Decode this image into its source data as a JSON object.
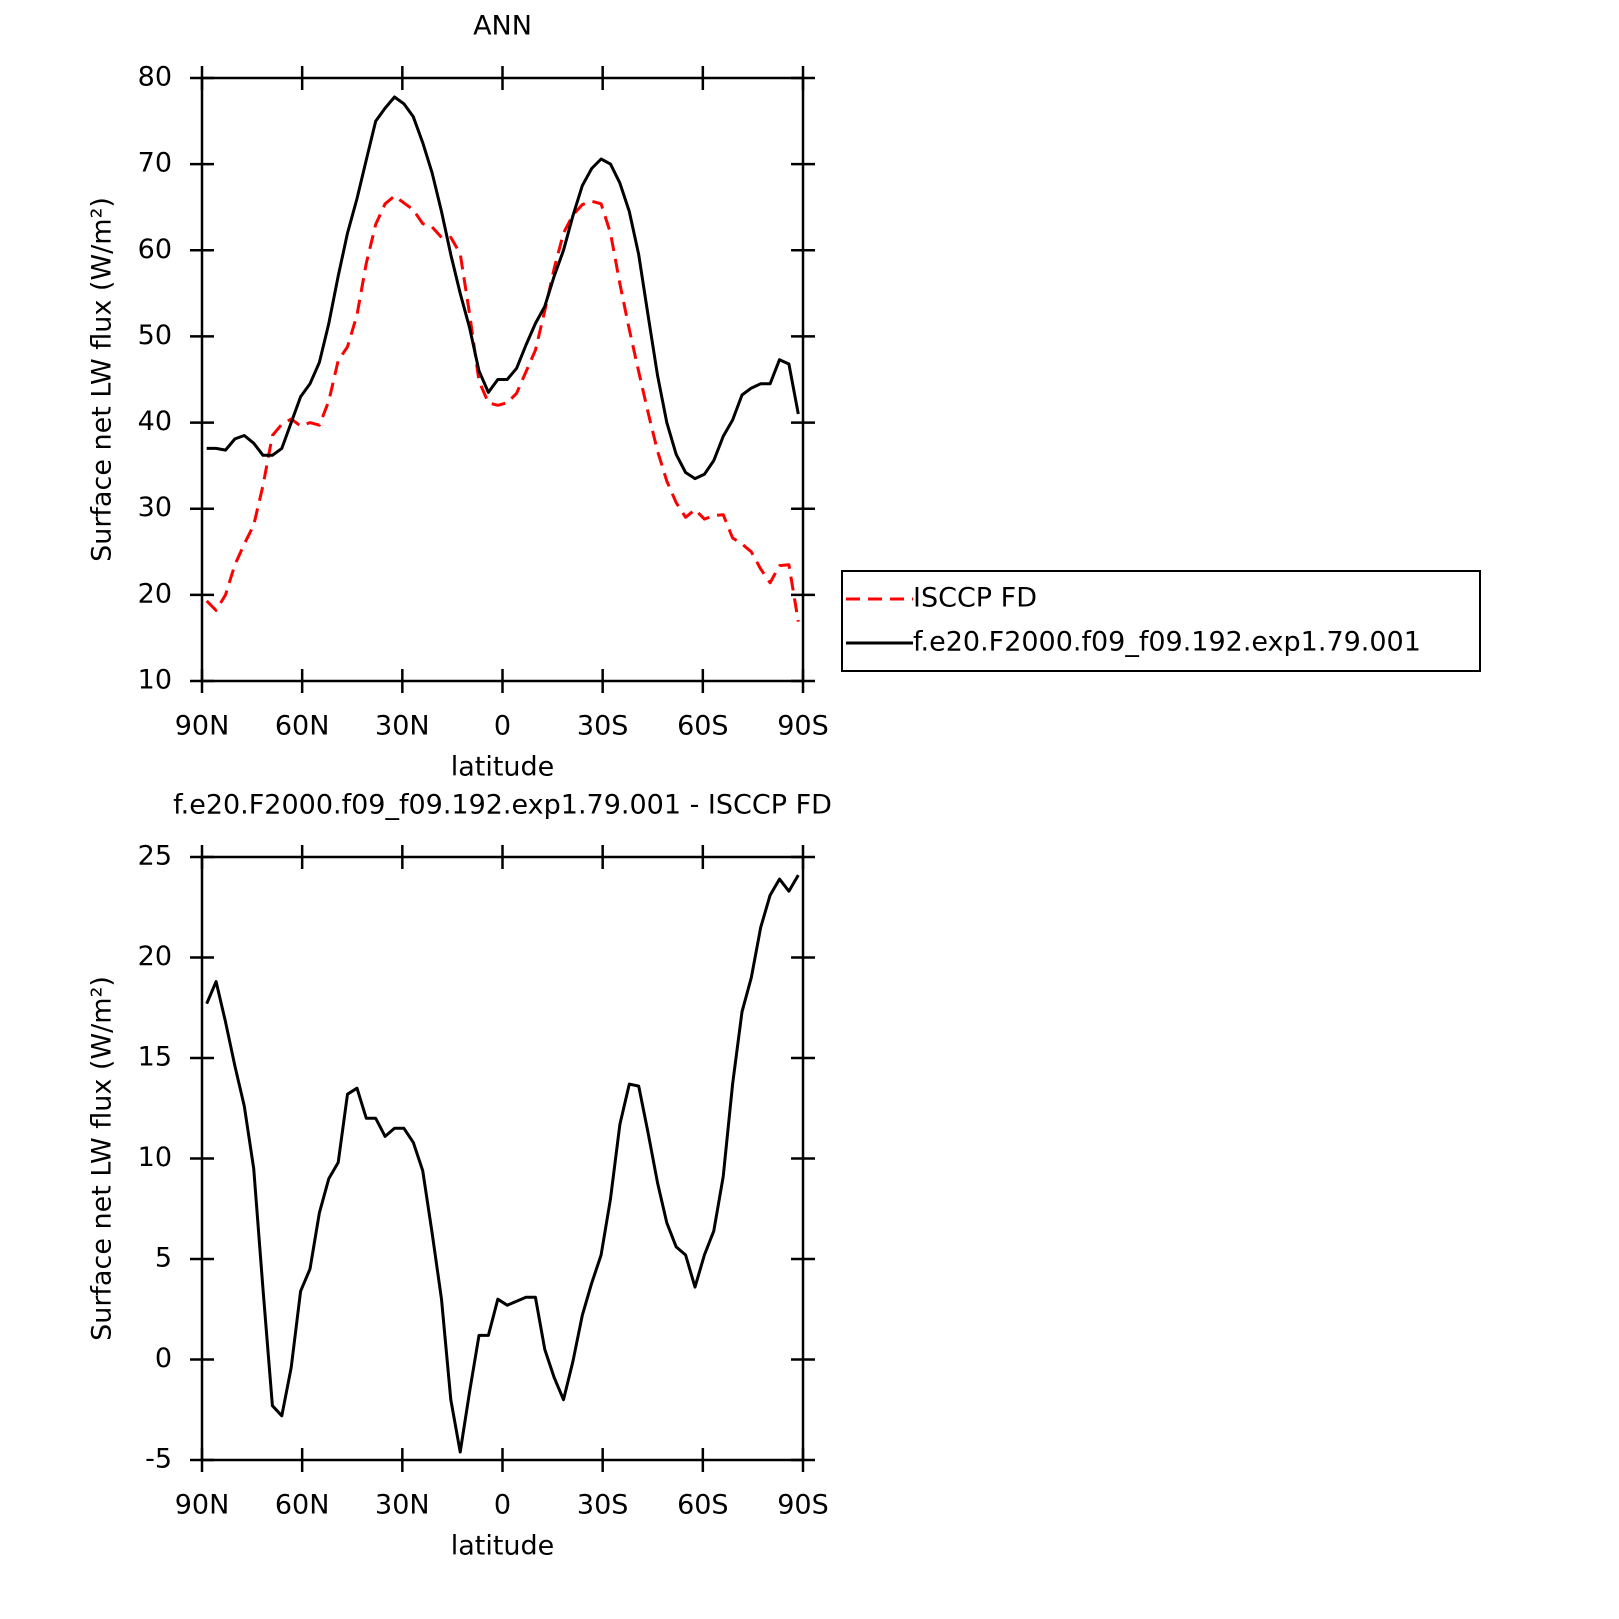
{
  "chart_data": [
    {
      "type": "line",
      "title": "ANN",
      "x_label": "latitude",
      "y_label": "Surface net LW flux (W/m²)",
      "xlim": [
        90,
        -90
      ],
      "xticks": [
        {
          "value": 90,
          "label": "90N"
        },
        {
          "value": 60,
          "label": "60N"
        },
        {
          "value": 30,
          "label": "30N"
        },
        0,
        {
          "value": -30,
          "label": "30S"
        },
        {
          "value": -60,
          "label": "60S"
        },
        {
          "value": -90,
          "label": "90S"
        }
      ],
      "ylim": [
        10,
        80
      ],
      "yticks": [
        10,
        20,
        30,
        40,
        50,
        60,
        70,
        80
      ],
      "grid": false,
      "legend": "right",
      "x": [
        88.59,
        85.78,
        82.97,
        80.16,
        77.34,
        74.53,
        71.72,
        68.91,
        66.09,
        63.28,
        60.47,
        57.66,
        54.84,
        52.03,
        49.22,
        46.41,
        43.59,
        40.78,
        37.97,
        35.16,
        32.34,
        29.53,
        26.72,
        23.91,
        21.09,
        18.28,
        15.47,
        12.66,
        9.84,
        7.03,
        4.22,
        1.41,
        -1.41,
        -4.22,
        -7.03,
        -9.84,
        -12.66,
        -15.47,
        -18.28,
        -21.09,
        -23.91,
        -26.72,
        -29.53,
        -32.34,
        -35.16,
        -37.97,
        -40.78,
        -43.59,
        -46.41,
        -49.22,
        -52.03,
        -54.84,
        -57.66,
        -60.47,
        -63.28,
        -66.09,
        -68.91,
        -71.72,
        -74.53,
        -77.34,
        -80.16,
        -82.97,
        -85.78,
        -88.59
      ],
      "series": [
        {
          "name": "ISCCP FD",
          "color": "#ff0000",
          "dash": true,
          "values": [
            19.3,
            18.2,
            20,
            23.5,
            25.9,
            28.1,
            32.7,
            38.5,
            39.8,
            40.4,
            39.6,
            40,
            39.7,
            42.5,
            47.2,
            48.8,
            52.5,
            58.5,
            63,
            65.4,
            66.3,
            65.5,
            64.7,
            63.1,
            62.7,
            61.5,
            61.5,
            59.6,
            52.6,
            44.8,
            42.3,
            42,
            42.3,
            43.4,
            45.9,
            48.4,
            53,
            57.9,
            62,
            64.1,
            65.3,
            65.7,
            65.4,
            62,
            56.1,
            50.8,
            45.9,
            41.2,
            36.7,
            33.2,
            30.7,
            29,
            29.9,
            28.8,
            29.2,
            29.3,
            26.6,
            25.9,
            25,
            23,
            21.4,
            23.4,
            23.5,
            16.9
          ]
        },
        {
          "name": "f.e20.F2000.f09_f09.192.exp1.79.001",
          "color": "#000000",
          "dash": false,
          "values": [
            37,
            37,
            36.8,
            38.1,
            38.5,
            37.6,
            36.2,
            36.2,
            37,
            40,
            43,
            44.5,
            47,
            51.5,
            57,
            62,
            66,
            70.5,
            75,
            76.5,
            77.8,
            77,
            75.5,
            72.5,
            69,
            64.5,
            59.5,
            55,
            51,
            46,
            43.5,
            45,
            45,
            46.3,
            49,
            51.5,
            53.5,
            57,
            60,
            64,
            67.5,
            69.5,
            70.6,
            70,
            67.8,
            64.5,
            59.5,
            52.5,
            45.5,
            40,
            36.3,
            34.2,
            33.5,
            34,
            35.6,
            38.4,
            40.3,
            43.2,
            44,
            44.5,
            44.5,
            47.3,
            46.8,
            41
          ]
        }
      ]
    },
    {
      "type": "line",
      "title": "f.e20.F2000.f09_f09.192.exp1.79.001 - ISCCP FD",
      "x_label": "latitude",
      "y_label": "Surface net LW flux (W/m²)",
      "xlim": [
        90,
        -90
      ],
      "xticks": [
        {
          "value": 90,
          "label": "90N"
        },
        {
          "value": 60,
          "label": "60N"
        },
        {
          "value": 30,
          "label": "30N"
        },
        0,
        {
          "value": -30,
          "label": "30S"
        },
        {
          "value": -60,
          "label": "60S"
        },
        {
          "value": -90,
          "label": "90S"
        }
      ],
      "ylim": [
        -5,
        25
      ],
      "yticks": [
        -5,
        0,
        5,
        10,
        15,
        20,
        25
      ],
      "grid": false,
      "x": [
        88.59,
        85.78,
        82.97,
        80.16,
        77.34,
        74.53,
        71.72,
        68.91,
        66.09,
        63.28,
        60.47,
        57.66,
        54.84,
        52.03,
        49.22,
        46.41,
        43.59,
        40.78,
        37.97,
        35.16,
        32.34,
        29.53,
        26.72,
        23.91,
        21.09,
        18.28,
        15.47,
        12.66,
        9.84,
        7.03,
        4.22,
        1.41,
        -1.41,
        -4.22,
        -7.03,
        -9.84,
        -12.66,
        -15.47,
        -18.28,
        -21.09,
        -23.91,
        -26.72,
        -29.53,
        -32.34,
        -35.16,
        -37.97,
        -40.78,
        -43.59,
        -46.41,
        -49.22,
        -52.03,
        -54.84,
        -57.66,
        -60.47,
        -63.28,
        -66.09,
        -68.91,
        -71.72,
        -74.53,
        -77.34,
        -80.16,
        -82.97,
        -85.78,
        -88.59
      ],
      "series": [
        {
          "color": "#000000",
          "dash": false,
          "values": [
            17.7,
            18.8,
            16.8,
            14.6,
            12.6,
            9.5,
            3.5,
            -2.3,
            -2.8,
            -0.4,
            3.4,
            4.5,
            7.3,
            9.0,
            9.8,
            13.2,
            13.5,
            12,
            12,
            11.1,
            11.5,
            11.5,
            10.8,
            9.4,
            6.3,
            3,
            -2,
            -4.6,
            -1.6,
            1.2,
            1.2,
            3,
            2.7,
            2.9,
            3.1,
            3.1,
            0.5,
            -0.9,
            -2,
            -0.1,
            2.2,
            3.8,
            5.2,
            8,
            11.7,
            13.7,
            13.6,
            11.3,
            8.8,
            6.8,
            5.6,
            5.2,
            3.6,
            5.2,
            6.4,
            9.1,
            13.7,
            17.3,
            19,
            21.5,
            23.1,
            23.9,
            23.3,
            24.1
          ]
        }
      ]
    }
  ]
}
